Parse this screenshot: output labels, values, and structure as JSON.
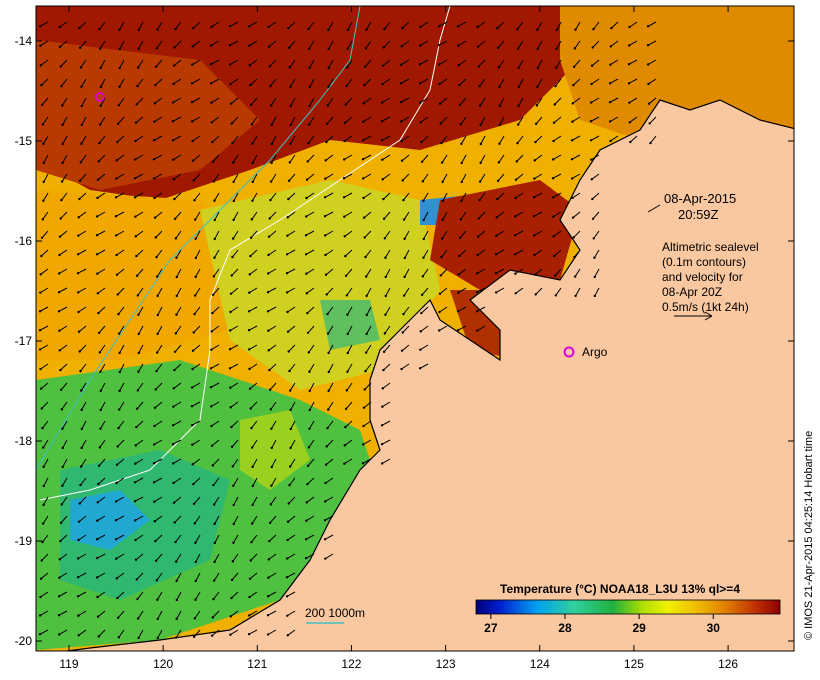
{
  "map": {
    "x_ticks": [
      "119",
      "120",
      "121",
      "122",
      "123",
      "124",
      "125",
      "126"
    ],
    "y_ticks": [
      "-14",
      "-15",
      "-16",
      "-17",
      "-18",
      "-19",
      "-20"
    ],
    "extent": {
      "lon": [
        118.65,
        126.7
      ],
      "lat": [
        -20.1,
        -13.65
      ]
    },
    "land_color": "#f9c8a0"
  },
  "annotations": {
    "date_line1": "08-Apr-2015",
    "date_line2": "20:59Z",
    "altimetry_lines": [
      "Altimetric sealevel",
      "(0.1m contours)",
      "and velocity for",
      "08-Apr 20Z",
      "0.5m/s (1kt 24h)"
    ],
    "argo_label": "Argo",
    "argo_color": "#e000e0",
    "contour_legend": "200  1000m",
    "contour_color": "#40c0c0"
  },
  "colorbar": {
    "title": "Temperature (°C) NOAA18_L3U 13% ql>=4",
    "ticks": [
      "27",
      "28",
      "29",
      "30"
    ],
    "range": [
      26.8,
      30.9
    ]
  },
  "credit": "© IMOS 21-Apr-2015 04:25:14 Hobart time"
}
